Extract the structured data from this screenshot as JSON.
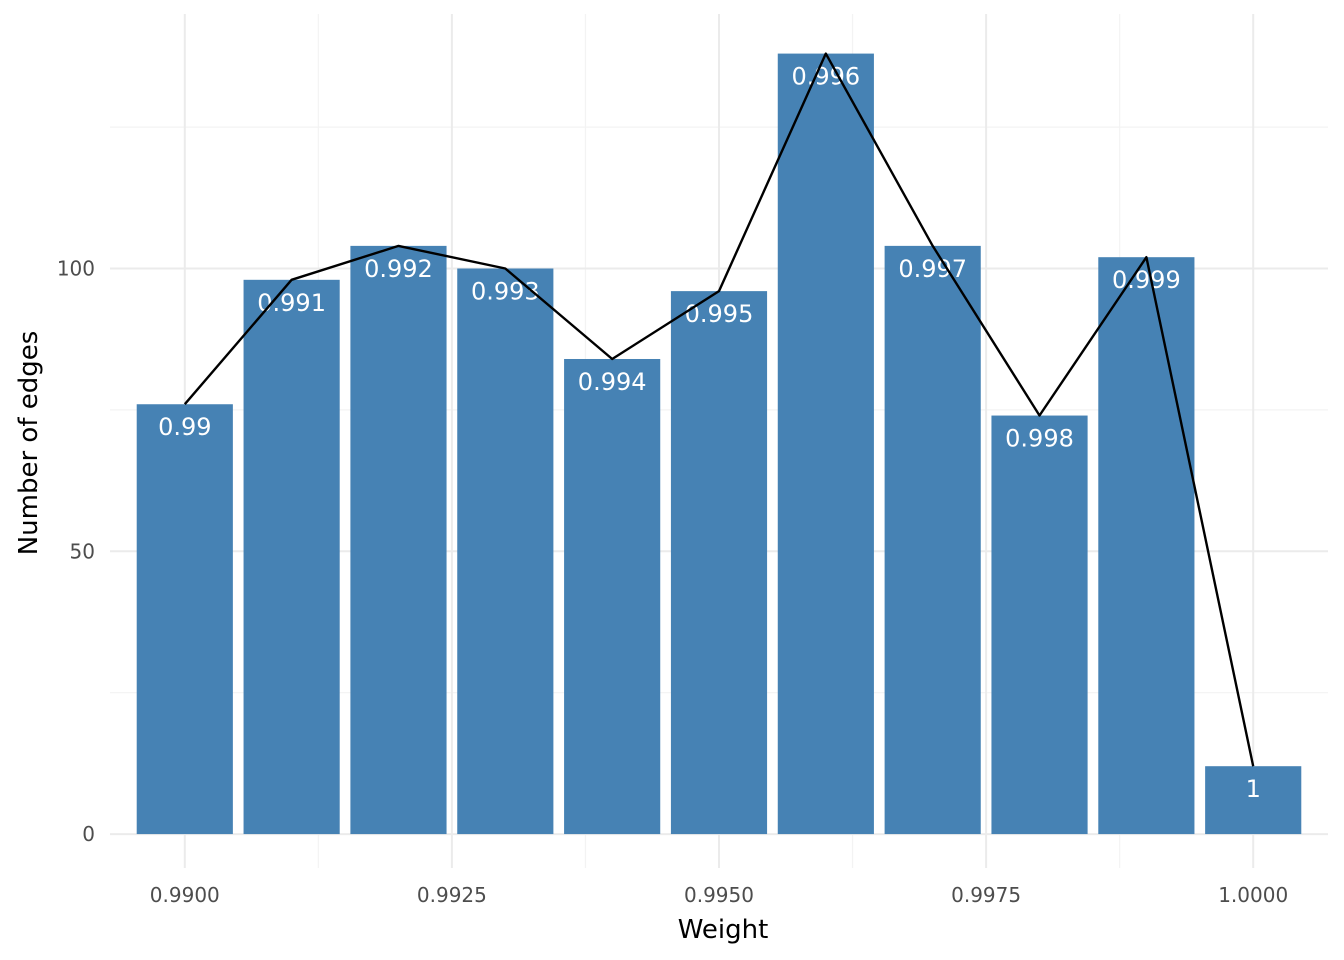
{
  "chart_data": {
    "type": "bar",
    "title": "",
    "xlabel": "Weight",
    "ylabel": "Number of edges",
    "x": [
      0.99,
      0.991,
      0.992,
      0.993,
      0.994,
      0.995,
      0.996,
      0.997,
      0.998,
      0.999,
      1.0
    ],
    "values": [
      76,
      98,
      104,
      100,
      84,
      96,
      138,
      104,
      74,
      102,
      12
    ],
    "bar_labels": [
      "0.99",
      "0.991",
      "0.992",
      "0.993",
      "0.994",
      "0.995",
      "0.996",
      "0.997",
      "0.998",
      "0.999",
      "1"
    ],
    "xlim": [
      0.9893,
      1.0007
    ],
    "ylim": [
      -6,
      145
    ],
    "x_ticks": [
      0.99,
      0.9925,
      0.995,
      0.9975,
      1.0
    ],
    "x_tick_labels": [
      "0.9900",
      "0.9925",
      "0.9950",
      "0.9975",
      "1.0000"
    ],
    "x_minor_ticks": [
      0.99125,
      0.99375,
      0.99625,
      0.99875
    ],
    "y_ticks": [
      0,
      50,
      100
    ],
    "y_tick_labels": [
      "0",
      "50",
      "100"
    ],
    "y_minor_ticks": [
      25,
      75,
      125
    ],
    "bar_color": "#4682b4",
    "line_color": "#000000",
    "overlay": "line through bar tops",
    "grid": true,
    "legend": "none"
  }
}
